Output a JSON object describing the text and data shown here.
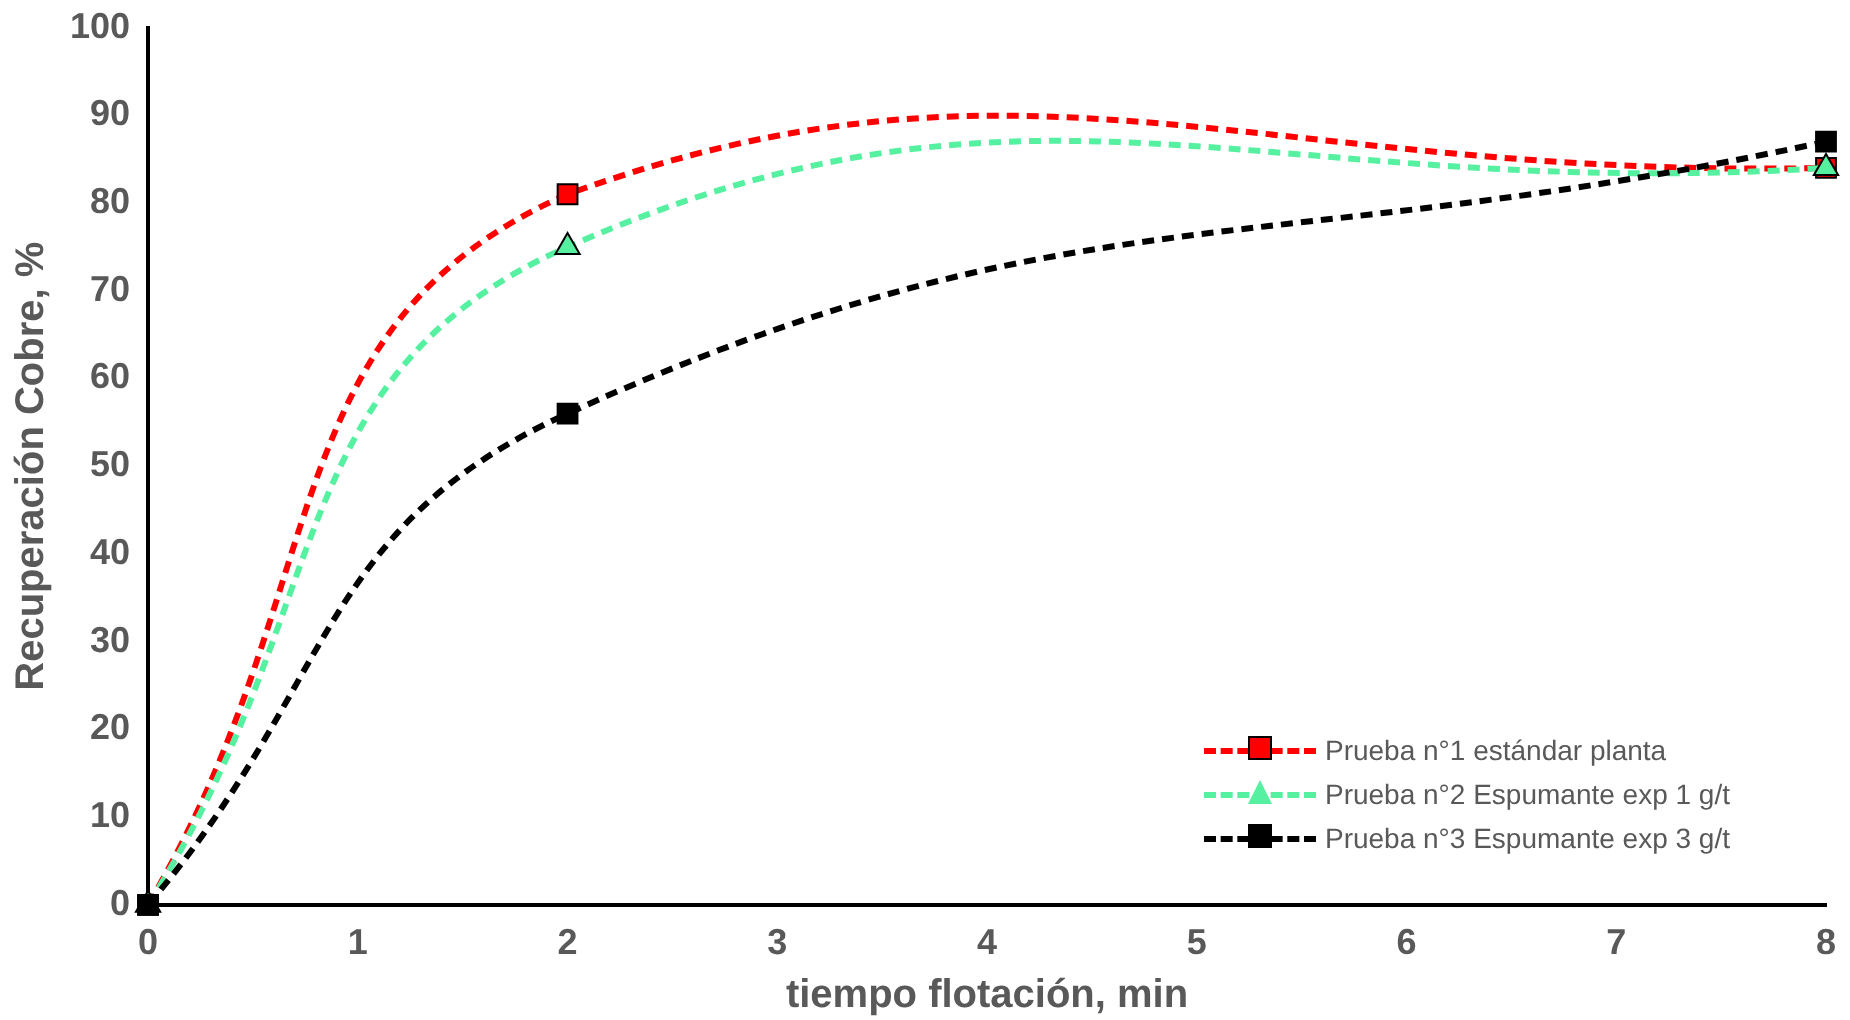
{
  "chart_data": {
    "type": "line",
    "xlabel": "tiempo flotación, min",
    "ylabel": "Recuperación Cobre, %",
    "x": [
      0,
      2,
      8
    ],
    "series": [
      {
        "name": "Prueba n°1 estándar planta",
        "color": "#ff0000",
        "marker": "square",
        "values": [
          0,
          81,
          84
        ]
      },
      {
        "name": "Prueba n°2 Espumante exp 1 g/t",
        "color": "#55f0a0",
        "marker": "triangle",
        "values": [
          0,
          75,
          84
        ]
      },
      {
        "name": "Prueba n°3 Espumante exp 3 g/t",
        "color": "#000000",
        "marker": "square",
        "values": [
          0,
          56,
          87
        ]
      }
    ],
    "xlim": [
      0,
      8
    ],
    "xticks": [
      0,
      1,
      2,
      3,
      4,
      5,
      6,
      7,
      8
    ],
    "ylim": [
      0,
      100
    ],
    "yticks": [
      0,
      10,
      20,
      30,
      40,
      50,
      60,
      70,
      80,
      90,
      100
    ],
    "grid": false,
    "legend": "bottom right",
    "line_style": "dashed"
  }
}
